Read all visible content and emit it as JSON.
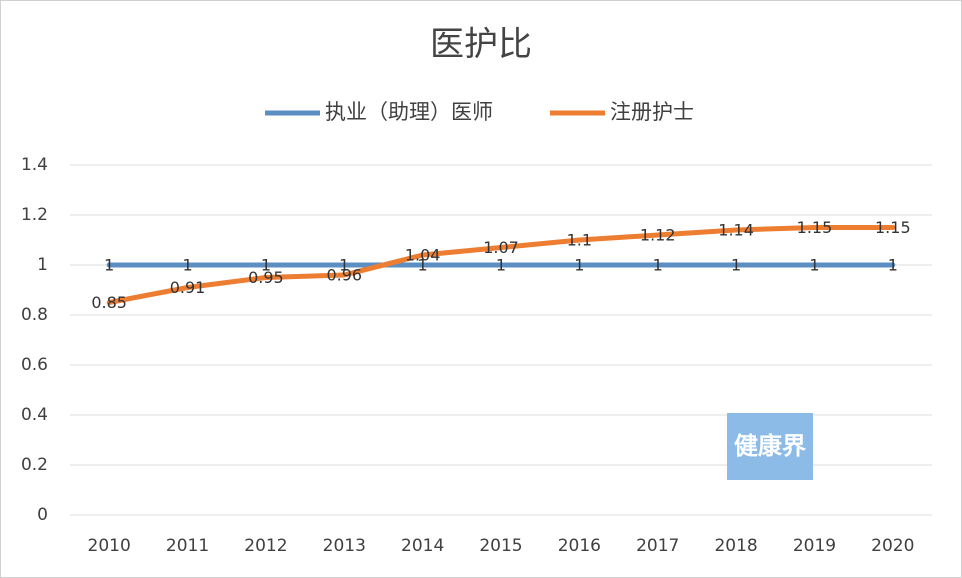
{
  "chart_data": {
    "type": "line",
    "title": "医护比",
    "categories": [
      "2010",
      "2011",
      "2012",
      "2013",
      "2014",
      "2015",
      "2016",
      "2017",
      "2018",
      "2019",
      "2020"
    ],
    "series": [
      {
        "name": "执业（助理）医师",
        "color": "#5b8fc3",
        "values": [
          1,
          1,
          1,
          1,
          1,
          1,
          1,
          1,
          1,
          1,
          1
        ]
      },
      {
        "name": "注册护士",
        "color": "#ed7d31",
        "values": [
          0.85,
          0.91,
          0.95,
          0.96,
          1.04,
          1.07,
          1.1,
          1.12,
          1.14,
          1.15,
          1.15
        ]
      }
    ],
    "ylim": [
      0,
      1.4
    ],
    "yticks": [
      0,
      0.2,
      0.4,
      0.6,
      0.8,
      1,
      1.2,
      1.4
    ],
    "grid": true,
    "legend": "top",
    "watermark": "健康界"
  }
}
